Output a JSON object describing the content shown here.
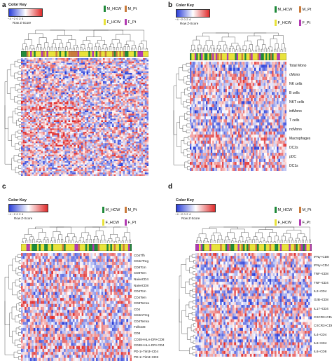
{
  "colors": {
    "M_HCW": "#1f8a3a",
    "M_Pt": "#c97b3c",
    "F_HCW": "#e8e23a",
    "F_Pt": "#b23ab2",
    "low": "#2b3fd9",
    "mid": "#ffffff",
    "high": "#e02a2a"
  },
  "common": {
    "color_key_title": "Color Key",
    "key_axis_label": "Row Z-Score",
    "key_ticks": "−4   −2    0    2    4",
    "legend": [
      "M_HCW",
      "M_Pt",
      "F_HCW",
      "F_Pt"
    ]
  },
  "panels": [
    {
      "letter": "a",
      "rows": []
    },
    {
      "letter": "b",
      "rows": [
        "Total Mono",
        "cMono",
        "NK cells",
        "B cells",
        "NKT cells",
        "intMono",
        "T cells",
        "ncMono",
        "Macrophages",
        "DC2s",
        "pDC",
        "DC1s"
      ]
    },
    {
      "letter": "c",
      "rows": [
        "CD4Tfh",
        "CD4nTreg",
        "CD8Tcm",
        "CD8Tem",
        "NaiveCD4",
        "NaiveCD8",
        "CD4Tcm",
        "CD4Tem",
        "CD8Temra",
        "CD4",
        "CD4mTreg",
        "CD4Temra",
        "FollCD8",
        "CD8",
        "CD38+HLA-DR+CD8",
        "CD38+HLA-DR+CD4",
        "PD-1+Tim3+CD4",
        "PD-1+Tim3+CD8"
      ]
    },
    {
      "letter": "d",
      "rows": [
        "IFNγ+CD8",
        "IFNγ+CD4",
        "TNF+CD8",
        "TNF+CD4",
        "IL2+CD4",
        "GzB+CD8",
        "IL17+CD4",
        "CXCR3+CD4",
        "CXCR3+CD8",
        "IL4+CD4",
        "IL6+CD4",
        "IL6+CD8"
      ]
    }
  ]
}
